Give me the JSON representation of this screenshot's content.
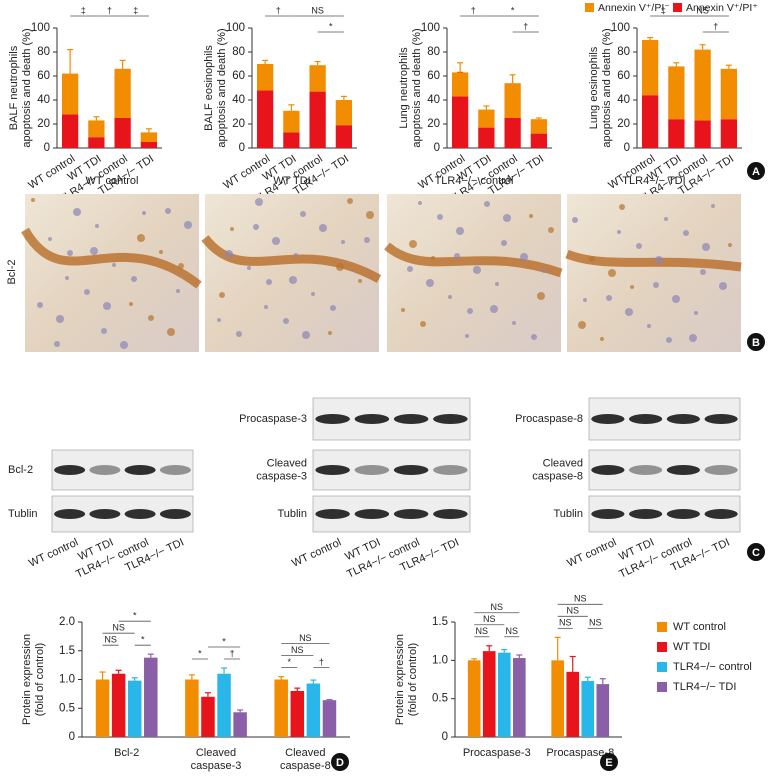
{
  "chart_data": [
    {
      "type": "stacked_bar",
      "ylabel": [
        "BALF neutrophils",
        "apoptosis and death (%)"
      ],
      "categories": [
        "WT control",
        "WT TDI",
        "TLR4−/− control",
        "TLR4−/− TDI"
      ],
      "series": [
        {
          "color": "#e8141c",
          "values": [
            28,
            9,
            25,
            5
          ],
          "errors": [
            21,
            3,
            9,
            2
          ]
        },
        {
          "color": "#f28c00",
          "values": [
            34,
            14,
            41,
            8
          ],
          "errors": [
            20,
            3,
            7,
            3
          ]
        }
      ],
      "ylim": [
        0,
        100
      ],
      "yticks": [
        0,
        20,
        40,
        60,
        80,
        100
      ],
      "comparisons": [
        {
          "groups": [
            0,
            1
          ],
          "label": "‡"
        },
        {
          "groups": [
            1,
            2
          ],
          "label": "†"
        },
        {
          "groups": [
            2,
            3
          ],
          "label": "‡"
        }
      ]
    },
    {
      "type": "stacked_bar",
      "ylabel": [
        "BALF eosinophils",
        "apoptosis and death (%)"
      ],
      "categories": [
        "WT control",
        "WT TDI",
        "TLR4−/− control",
        "TLR4−/− TDI"
      ],
      "series": [
        {
          "color": "#e8141c",
          "values": [
            48,
            13,
            47,
            19
          ],
          "errors": [
            20,
            5,
            5,
            3
          ]
        },
        {
          "color": "#f28c00",
          "values": [
            22,
            18,
            22,
            21
          ],
          "errors": [
            3,
            5,
            3,
            3
          ]
        }
      ],
      "ylim": [
        0,
        100
      ],
      "yticks": [
        0,
        20,
        40,
        60,
        80,
        100
      ],
      "comparisons": [
        {
          "groups": [
            0,
            1
          ],
          "label": "†"
        },
        {
          "groups": [
            1,
            3
          ],
          "label": "NS"
        },
        {
          "groups": [
            2,
            3
          ],
          "label": "*"
        }
      ]
    },
    {
      "type": "stacked_bar",
      "ylabel": [
        "Lung neutrophils",
        "apoptosis and death (%)"
      ],
      "categories": [
        "WT control",
        "WT TDI",
        "TLR4−/− control",
        "TLR4−/− TDI"
      ],
      "series": [
        {
          "color": "#e8141c",
          "values": [
            43,
            17,
            25,
            12
          ],
          "errors": [
            20,
            2,
            3,
            3
          ]
        },
        {
          "color": "#f28c00",
          "values": [
            20,
            15,
            29,
            12
          ],
          "errors": [
            8,
            3,
            7,
            1
          ]
        }
      ],
      "ylim": [
        0,
        100
      ],
      "yticks": [
        0,
        20,
        40,
        60,
        80,
        100
      ],
      "comparisons": [
        {
          "groups": [
            0,
            1
          ],
          "label": "†"
        },
        {
          "groups": [
            1,
            3
          ],
          "label": "*"
        },
        {
          "groups": [
            2,
            3
          ],
          "label": "†"
        }
      ]
    },
    {
      "type": "stacked_bar",
      "ylabel": [
        "Lung eosinophils",
        "apoptosis and death (%)"
      ],
      "categories": [
        "WT control",
        "WT TDI",
        "TLR4−/− control",
        "TLR4−/− TDI"
      ],
      "series": [
        {
          "name": "Annexin V⁺/PI⁺",
          "color": "#e8141c",
          "values": [
            44,
            24,
            23,
            24
          ],
          "errors": [
            1,
            3,
            3,
            3
          ]
        },
        {
          "name": "Annexin V⁺/PI⁻",
          "color": "#f28c00",
          "values": [
            46,
            44,
            59,
            42
          ],
          "errors": [
            2,
            3,
            4,
            3
          ]
        }
      ],
      "ylim": [
        0,
        100
      ],
      "yticks": [
        0,
        20,
        40,
        60,
        80,
        100
      ],
      "comparisons": [
        {
          "groups": [
            0,
            1
          ],
          "label": "‡"
        },
        {
          "groups": [
            1,
            3
          ],
          "label": "NS"
        },
        {
          "groups": [
            2,
            3
          ],
          "label": "†"
        }
      ]
    },
    {
      "type": "grouped_bar",
      "ylabel": [
        "Protein expression",
        "(fold of control)"
      ],
      "categories": [
        [
          "Bcl-2"
        ],
        [
          "Cleaved",
          "caspase-3"
        ],
        [
          "Cleaved",
          "caspase-8"
        ]
      ],
      "series": [
        {
          "color": "#f28c00",
          "values": [
            1.0,
            1.0,
            1.0
          ],
          "errors": [
            0.13,
            0.08,
            0.05
          ]
        },
        {
          "color": "#e8141c",
          "values": [
            1.1,
            0.7,
            0.8
          ],
          "errors": [
            0.06,
            0.07,
            0.05
          ]
        },
        {
          "color": "#29b6e8",
          "values": [
            0.98,
            1.1,
            0.93
          ],
          "errors": [
            0.05,
            0.1,
            0.06
          ]
        },
        {
          "color": "#8b5ea8",
          "values": [
            1.38,
            0.43,
            0.64
          ],
          "errors": [
            0.06,
            0.04,
            0.01
          ]
        }
      ],
      "ylim": [
        0,
        2
      ],
      "yticks": [
        0,
        0.5,
        {
          "value": 1,
          "label": "1.0"
        },
        1.5,
        {
          "value": 2,
          "label": "2.0"
        }
      ],
      "comparisons": [
        {
          "category": 0,
          "groups": [
            0,
            1
          ],
          "label": "NS"
        },
        {
          "category": 0,
          "groups": [
            2,
            3
          ],
          "label": "*"
        },
        {
          "category": 0,
          "groups": [
            0,
            2
          ],
          "label": "NS"
        },
        {
          "category": 0,
          "groups": [
            1,
            3
          ],
          "label": "*"
        },
        {
          "category": 1,
          "groups": [
            0,
            1
          ],
          "label": "*"
        },
        {
          "category": 1,
          "groups": [
            2,
            3
          ],
          "label": "†"
        },
        {
          "category": 1,
          "groups": [
            1,
            3
          ],
          "label": "*"
        },
        {
          "category": 2,
          "groups": [
            0,
            1
          ],
          "label": "*"
        },
        {
          "category": 2,
          "groups": [
            2,
            3
          ],
          "label": "†"
        },
        {
          "category": 2,
          "groups": [
            0,
            2
          ],
          "label": "NS"
        },
        {
          "category": 2,
          "groups": [
            0,
            3
          ],
          "label": "NS"
        }
      ]
    },
    {
      "type": "grouped_bar",
      "ylabel": [
        "Protein expression",
        "(fold of control)"
      ],
      "categories": [
        [
          "Procaspase-3"
        ],
        [
          "Procaspase-8"
        ]
      ],
      "series": [
        {
          "name": "WT control",
          "color": "#f28c00",
          "values": [
            1.0,
            1.0
          ],
          "errors": [
            0.02,
            0.3
          ]
        },
        {
          "name": "WT TDI",
          "color": "#e8141c",
          "values": [
            1.12,
            0.85
          ],
          "errors": [
            0.07,
            0.2
          ]
        },
        {
          "name": "TLR4−/− control",
          "color": "#29b6e8",
          "values": [
            1.1,
            0.73
          ],
          "errors": [
            0.04,
            0.05
          ]
        },
        {
          "name": "TLR4−/− TDI",
          "color": "#8b5ea8",
          "values": [
            1.03,
            0.69
          ],
          "errors": [
            0.04,
            0.07
          ]
        }
      ],
      "ylim": [
        0,
        1.5
      ],
      "yticks": [
        0,
        0.5,
        {
          "value": 1,
          "label": "1.0"
        },
        1.5
      ],
      "comparisons": [
        {
          "category": 0,
          "groups": [
            0,
            1
          ],
          "label": "NS"
        },
        {
          "category": 0,
          "groups": [
            2,
            3
          ],
          "label": "NS"
        },
        {
          "category": 0,
          "groups": [
            0,
            2
          ],
          "label": "NS"
        },
        {
          "category": 0,
          "groups": [
            0,
            3
          ],
          "label": "NS"
        },
        {
          "category": 1,
          "groups": [
            0,
            1
          ],
          "label": "NS"
        },
        {
          "category": 1,
          "groups": [
            2,
            3
          ],
          "label": "NS"
        },
        {
          "category": 1,
          "groups": [
            0,
            2
          ],
          "label": "NS"
        },
        {
          "category": 1,
          "groups": [
            0,
            3
          ],
          "label": "NS"
        }
      ]
    }
  ],
  "panel_b": {
    "columns": [
      "WT control",
      "WT TDI",
      "TLR4−/− control",
      "TLR4−/− TDI"
    ],
    "row_label": "Bcl-2"
  },
  "panel_c": {
    "blots": [
      {
        "rows": [
          [
            "Bcl-2"
          ],
          [
            "Tublin"
          ]
        ]
      },
      {
        "rows": [
          [
            "Procaspase-3"
          ],
          [
            "Cleaved",
            "caspase-3"
          ],
          [
            "Tublin"
          ]
        ]
      },
      {
        "rows": [
          [
            "Procaspase-8"
          ],
          [
            "Cleaved",
            "caspase-8"
          ],
          [
            "Tublin"
          ]
        ]
      }
    ],
    "lanes": [
      "WT control",
      "WT TDI",
      "TLR4−/− control",
      "TLR4−/− TDI"
    ]
  },
  "panel_labels": [
    "A",
    "B",
    "C",
    "D",
    "E"
  ]
}
